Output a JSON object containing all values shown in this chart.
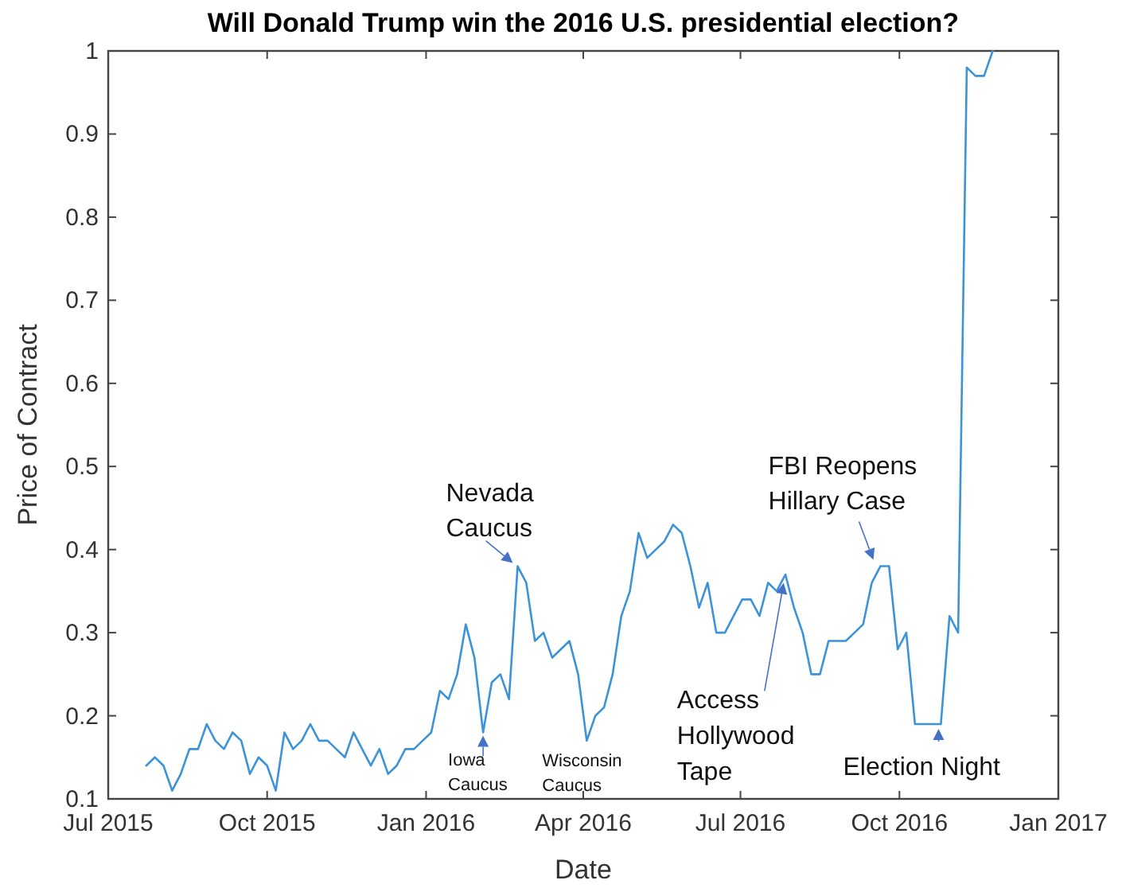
{
  "chart_data": {
    "type": "line",
    "title": "Will Donald Trump win the 2016 U.S. presidential election?",
    "xlabel": "Date",
    "ylabel": "Price of Contract",
    "x": [
      "2015-07-23",
      "2015-07-28",
      "2015-08-02",
      "2015-08-07",
      "2015-08-12",
      "2015-08-17",
      "2015-08-22",
      "2015-08-27",
      "2015-09-01",
      "2015-09-06",
      "2015-09-11",
      "2015-09-16",
      "2015-09-21",
      "2015-09-26",
      "2015-10-01",
      "2015-10-06",
      "2015-10-11",
      "2015-10-16",
      "2015-10-21",
      "2015-10-26",
      "2015-10-31",
      "2015-11-05",
      "2015-11-10",
      "2015-11-15",
      "2015-11-20",
      "2015-11-25",
      "2015-11-30",
      "2015-12-05",
      "2015-12-10",
      "2015-12-15",
      "2015-12-20",
      "2015-12-25",
      "2015-12-30",
      "2016-01-04",
      "2016-01-09",
      "2016-01-14",
      "2016-01-19",
      "2016-01-24",
      "2016-01-29",
      "2016-02-03",
      "2016-02-08",
      "2016-02-13",
      "2016-02-18",
      "2016-02-23",
      "2016-02-28",
      "2016-03-04",
      "2016-03-09",
      "2016-03-14",
      "2016-03-19",
      "2016-03-24",
      "2016-03-29",
      "2016-04-03",
      "2016-04-08",
      "2016-04-13",
      "2016-04-18",
      "2016-04-23",
      "2016-04-28",
      "2016-05-03",
      "2016-05-08",
      "2016-05-13",
      "2016-05-18",
      "2016-05-23",
      "2016-05-28",
      "2016-06-02",
      "2016-06-07",
      "2016-06-12",
      "2016-06-17",
      "2016-06-22",
      "2016-06-27",
      "2016-07-02",
      "2016-07-07",
      "2016-07-12",
      "2016-07-17",
      "2016-07-22",
      "2016-07-27",
      "2016-08-01",
      "2016-08-06",
      "2016-08-11",
      "2016-08-16",
      "2016-08-21",
      "2016-08-26",
      "2016-08-31",
      "2016-09-05",
      "2016-09-10",
      "2016-09-15",
      "2016-09-20",
      "2016-09-25",
      "2016-09-30",
      "2016-10-05",
      "2016-10-10",
      "2016-10-15",
      "2016-10-20",
      "2016-10-25",
      "2016-10-30",
      "2016-11-04",
      "2016-11-09",
      "2016-11-14",
      "2016-11-19",
      "2016-11-24"
    ],
    "series": [
      {
        "color": "#3c93d8",
        "values": [
          0.14,
          0.15,
          0.14,
          0.11,
          0.13,
          0.16,
          0.16,
          0.19,
          0.17,
          0.16,
          0.18,
          0.17,
          0.13,
          0.15,
          0.14,
          0.11,
          0.18,
          0.16,
          0.17,
          0.19,
          0.17,
          0.17,
          0.16,
          0.15,
          0.18,
          0.16,
          0.14,
          0.16,
          0.13,
          0.14,
          0.16,
          0.16,
          0.17,
          0.18,
          0.23,
          0.22,
          0.25,
          0.31,
          0.27,
          0.18,
          0.24,
          0.25,
          0.22,
          0.38,
          0.36,
          0.29,
          0.3,
          0.27,
          0.28,
          0.29,
          0.25,
          0.17,
          0.2,
          0.21,
          0.25,
          0.32,
          0.35,
          0.42,
          0.39,
          0.4,
          0.41,
          0.43,
          0.42,
          0.38,
          0.33,
          0.36,
          0.3,
          0.3,
          0.32,
          0.34,
          0.34,
          0.32,
          0.36,
          0.35,
          0.37,
          0.33,
          0.3,
          0.25,
          0.25,
          0.29,
          0.29,
          0.29,
          0.3,
          0.31,
          0.36,
          0.38,
          0.38,
          0.28,
          0.3,
          0.19,
          0.19,
          0.19,
          0.19,
          0.32,
          0.3,
          0.98,
          0.97,
          0.97,
          1.0
        ]
      }
    ],
    "xlim": [
      "2015-07-01",
      "2017-01-01"
    ],
    "xticks": [
      {
        "value": "2015-07-01",
        "label": "Jul 2015"
      },
      {
        "value": "2015-10-01",
        "label": "Oct 2015"
      },
      {
        "value": "2016-01-01",
        "label": "Jan 2016"
      },
      {
        "value": "2016-04-01",
        "label": "Apr 2016"
      },
      {
        "value": "2016-07-01",
        "label": "Jul 2016"
      },
      {
        "value": "2016-10-01",
        "label": "Oct 2016"
      },
      {
        "value": "2017-01-01",
        "label": "Jan 2017"
      }
    ],
    "ylim": [
      0.1,
      1
    ],
    "yticks": [
      0.1,
      0.2,
      0.3,
      0.4,
      0.5,
      0.6,
      0.7,
      0.8,
      0.9,
      1
    ],
    "annotations": [
      {
        "text": "Nevada Caucus",
        "x": "2016-02-23",
        "y": 0.38
      },
      {
        "text": "Iowa Caucus",
        "x": "2016-02-03",
        "y": 0.18
      },
      {
        "text": "Wisconsin Caucus",
        "x": "2016-04-03",
        "y": 0.17
      },
      {
        "text": "Access Hollywood Tape",
        "x": "2016-07-26",
        "y": 0.36
      },
      {
        "text": "FBI Reopens Hillary Case",
        "x": "2016-09-15",
        "y": 0.38
      },
      {
        "text": "Election Night",
        "x": "2016-10-20",
        "y": 0.19
      }
    ]
  }
}
